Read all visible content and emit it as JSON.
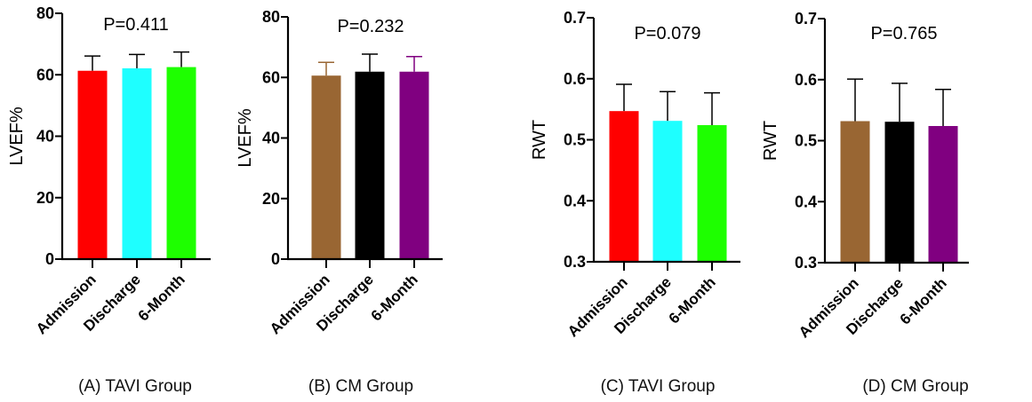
{
  "chart_data": [
    {
      "type": "bar",
      "caption": "(A) TAVI Group",
      "annotation": "P=0.411",
      "ylabel": "LVEF%",
      "ylim": [
        0,
        80
      ],
      "yticks": [
        "0",
        "20",
        "40",
        "60",
        "80"
      ],
      "categories": [
        "Admission",
        "Discharge",
        "6-Month"
      ],
      "values": [
        61.3,
        62.1,
        62.5
      ],
      "error_upper": [
        66.1,
        66.6,
        67.4
      ],
      "colors": [
        "#ff0000",
        "#1effff",
        "#1eff00"
      ],
      "error_colors": [
        "#000000",
        "#000000",
        "#000000"
      ]
    },
    {
      "type": "bar",
      "caption": "(B)  CM Group",
      "annotation": "P=0.232",
      "ylabel": "LVEF%",
      "ylim": [
        0,
        80
      ],
      "yticks": [
        "0",
        "20",
        "40",
        "60",
        "80"
      ],
      "categories": [
        "Admission",
        "Discharge",
        "6-Month"
      ],
      "values": [
        60.6,
        61.9,
        61.9
      ],
      "error_upper": [
        65.0,
        67.7,
        66.9
      ],
      "colors": [
        "#996633",
        "#000000",
        "#800080"
      ],
      "error_colors": [
        "#996633",
        "#000000",
        "#800080"
      ]
    },
    {
      "type": "bar",
      "caption": "(C) TAVI Group",
      "annotation": "P=0.079",
      "ylabel": "RWT",
      "ylim": [
        0.3,
        0.7
      ],
      "yticks": [
        "0.3",
        "0.4",
        "0.5",
        "0.6",
        "0.7"
      ],
      "categories": [
        "Admission",
        "Discharge",
        "6-Month"
      ],
      "values": [
        0.547,
        0.531,
        0.524
      ],
      "error_upper": [
        0.591,
        0.579,
        0.577
      ],
      "colors": [
        "#ff0000",
        "#1effff",
        "#1eff00"
      ],
      "error_colors": [
        "#000000",
        "#000000",
        "#000000"
      ]
    },
    {
      "type": "bar",
      "caption": "(D) CM Group",
      "annotation": "P=0.765",
      "ylabel": "RWT",
      "ylim": [
        0.3,
        0.7
      ],
      "yticks": [
        "0.3",
        "0.4",
        "0.5",
        "0.6",
        "0.7"
      ],
      "categories": [
        "Admission",
        "Discharge",
        "6-Month"
      ],
      "values": [
        0.532,
        0.531,
        0.524
      ],
      "error_upper": [
        0.601,
        0.594,
        0.584
      ],
      "colors": [
        "#996633",
        "#000000",
        "#800080"
      ],
      "error_colors": [
        "#000000",
        "#000000",
        "#000000"
      ]
    }
  ]
}
